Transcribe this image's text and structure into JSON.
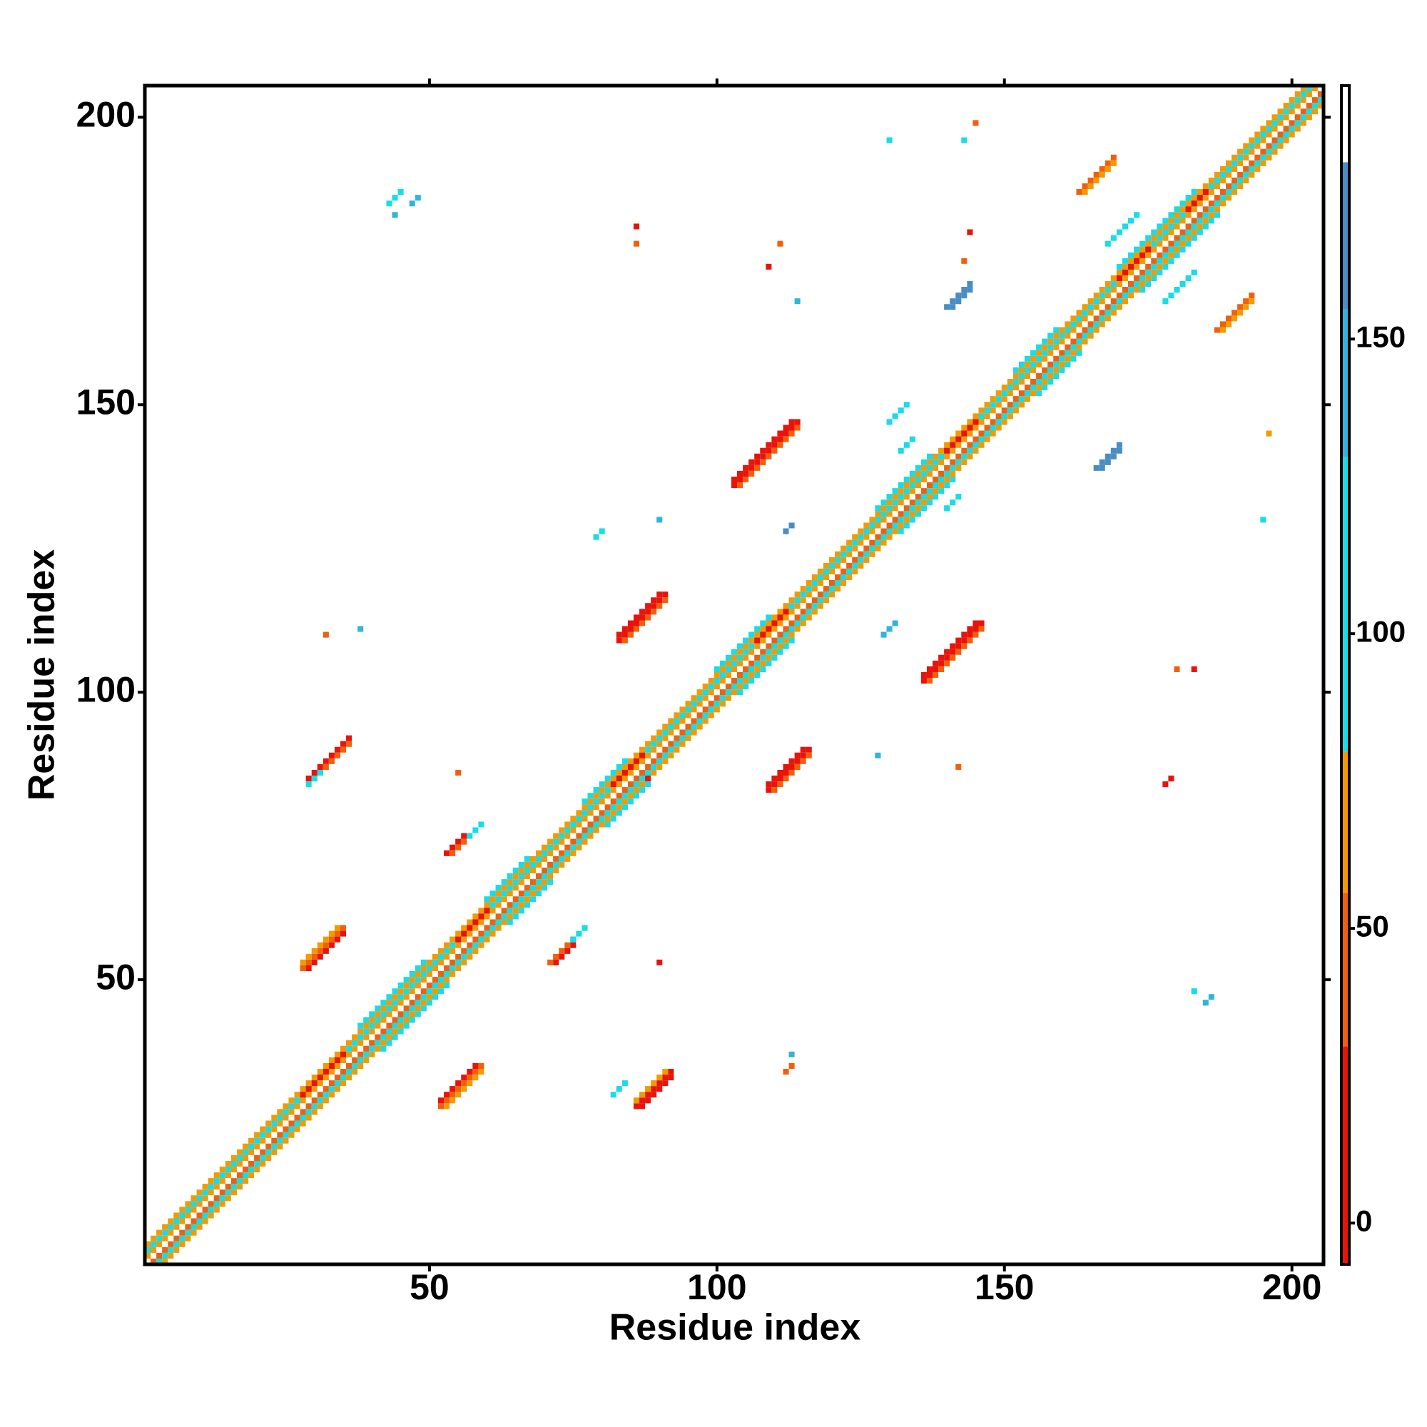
{
  "chart_data": {
    "type": "heatmap",
    "x_label": "Residue index",
    "y_label": "Residue index",
    "xlim": [
      0.5,
      205.5
    ],
    "ylim": [
      0.5,
      205.5
    ],
    "xticks": [
      50,
      100,
      150,
      200
    ],
    "yticks": [
      50,
      100,
      150,
      200
    ],
    "clim": [
      -7,
      193
    ],
    "cticks": [
      0,
      50,
      100,
      150
    ],
    "colorscale": [
      {
        "from": -7,
        "to": 30,
        "color": "#e8140c"
      },
      {
        "from": 30,
        "to": 56,
        "color": "#f0600c"
      },
      {
        "from": 56,
        "to": 80,
        "color": "#f39a00"
      },
      {
        "from": 80,
        "to": 130,
        "color": "#18dce8"
      },
      {
        "from": 130,
        "to": 155,
        "color": "#30b4dc"
      },
      {
        "from": 155,
        "to": 180,
        "color": "#4a8cc4"
      },
      {
        "from": 180,
        "to": 193,
        "color": "#ffffff"
      }
    ],
    "runs": [
      [
        1,
        2,
        204,
        60
      ],
      [
        2,
        1,
        204,
        40
      ],
      [
        1,
        3,
        203,
        100
      ],
      [
        3,
        1,
        203,
        95
      ],
      [
        1,
        4,
        202,
        65
      ],
      [
        4,
        1,
        202,
        65
      ],
      [
        38,
        42,
        12,
        100
      ],
      [
        42,
        38,
        12,
        100
      ],
      [
        100,
        104,
        10,
        110
      ],
      [
        104,
        100,
        10,
        110
      ],
      [
        170,
        174,
        14,
        100
      ],
      [
        174,
        170,
        14,
        100
      ],
      [
        128,
        132,
        10,
        100
      ],
      [
        132,
        128,
        10,
        100
      ],
      [
        60,
        64,
        8,
        100
      ],
      [
        64,
        60,
        8,
        100
      ],
      [
        77,
        81,
        8,
        100
      ],
      [
        81,
        77,
        8,
        100
      ],
      [
        152,
        156,
        8,
        100
      ],
      [
        156,
        152,
        8,
        100
      ],
      [
        168,
        178,
        6,
        100
      ],
      [
        178,
        168,
        6,
        100
      ],
      [
        28,
        30,
        8,
        10
      ],
      [
        55,
        57,
        6,
        10
      ],
      [
        82,
        84,
        6,
        10
      ],
      [
        107,
        109,
        6,
        10
      ],
      [
        140,
        142,
        6,
        10
      ],
      [
        170,
        172,
        6,
        10
      ],
      [
        182,
        184,
        4,
        10
      ],
      [
        52,
        28,
        8,
        40
      ],
      [
        53,
        28,
        7,
        60
      ],
      [
        52,
        29,
        7,
        10
      ],
      [
        86,
        28,
        7,
        10
      ],
      [
        87,
        28,
        6,
        20
      ],
      [
        82,
        30,
        3,
        100
      ],
      [
        86,
        29,
        6,
        60
      ],
      [
        28,
        52,
        8,
        40
      ],
      [
        29,
        52,
        7,
        10
      ],
      [
        28,
        53,
        7,
        60
      ],
      [
        53,
        72,
        4,
        10
      ],
      [
        54,
        72,
        3,
        40
      ],
      [
        57,
        75,
        3,
        100
      ],
      [
        71,
        53,
        5,
        40
      ],
      [
        72,
        53,
        4,
        10
      ],
      [
        75,
        57,
        3,
        100
      ],
      [
        29,
        85,
        8,
        10
      ],
      [
        30,
        85,
        7,
        40
      ],
      [
        29,
        84,
        3,
        100
      ],
      [
        109,
        83,
        8,
        10
      ],
      [
        110,
        83,
        7,
        40
      ],
      [
        109,
        84,
        7,
        20
      ],
      [
        136,
        102,
        11,
        10
      ],
      [
        137,
        102,
        10,
        40
      ],
      [
        136,
        103,
        10,
        20
      ],
      [
        83,
        109,
        9,
        10
      ],
      [
        84,
        109,
        8,
        40
      ],
      [
        83,
        110,
        8,
        20
      ],
      [
        103,
        136,
        12,
        10
      ],
      [
        104,
        136,
        11,
        40
      ],
      [
        103,
        137,
        11,
        20
      ],
      [
        163,
        187,
        7,
        45
      ],
      [
        164,
        187,
        6,
        60
      ],
      [
        187,
        163,
        7,
        45
      ],
      [
        188,
        163,
        6,
        60
      ],
      [
        140,
        167,
        5,
        165
      ],
      [
        141,
        167,
        4,
        165
      ],
      [
        166,
        139,
        5,
        165
      ],
      [
        167,
        139,
        4,
        165
      ],
      [
        43,
        185,
        3,
        110
      ],
      [
        47,
        185,
        2,
        140
      ],
      [
        44,
        183,
        1,
        140
      ],
      [
        86,
        181,
        1,
        10
      ],
      [
        86,
        178,
        1,
        50
      ],
      [
        111,
        178,
        1,
        40
      ],
      [
        109,
        174,
        1,
        10
      ],
      [
        114,
        168,
        1,
        140
      ],
      [
        144,
        180,
        1,
        10
      ],
      [
        143,
        175,
        1,
        50
      ],
      [
        130,
        196,
        1,
        110
      ],
      [
        145,
        199,
        1,
        50
      ],
      [
        143,
        196,
        1,
        110
      ],
      [
        183,
        48,
        1,
        110
      ],
      [
        185,
        46,
        2,
        140
      ],
      [
        183,
        104,
        1,
        10
      ],
      [
        180,
        104,
        1,
        50
      ],
      [
        178,
        84,
        2,
        30
      ],
      [
        196,
        145,
        1,
        60
      ],
      [
        195,
        130,
        1,
        110
      ],
      [
        55,
        86,
        1,
        50
      ],
      [
        88,
        85,
        1,
        10
      ],
      [
        32,
        110,
        1,
        50
      ],
      [
        38,
        111,
        1,
        140
      ],
      [
        128,
        89,
        1,
        150
      ],
      [
        142,
        87,
        1,
        50
      ],
      [
        113,
        37,
        1,
        140
      ],
      [
        112,
        34,
        2,
        50
      ],
      [
        90,
        53,
        1,
        10
      ],
      [
        79,
        127,
        2,
        110
      ],
      [
        90,
        130,
        1,
        150
      ],
      [
        112,
        128,
        2,
        160
      ],
      [
        129,
        110,
        3,
        140
      ],
      [
        130,
        147,
        4,
        100
      ],
      [
        132,
        142,
        3,
        100
      ],
      [
        140,
        132,
        3,
        110
      ]
    ]
  }
}
